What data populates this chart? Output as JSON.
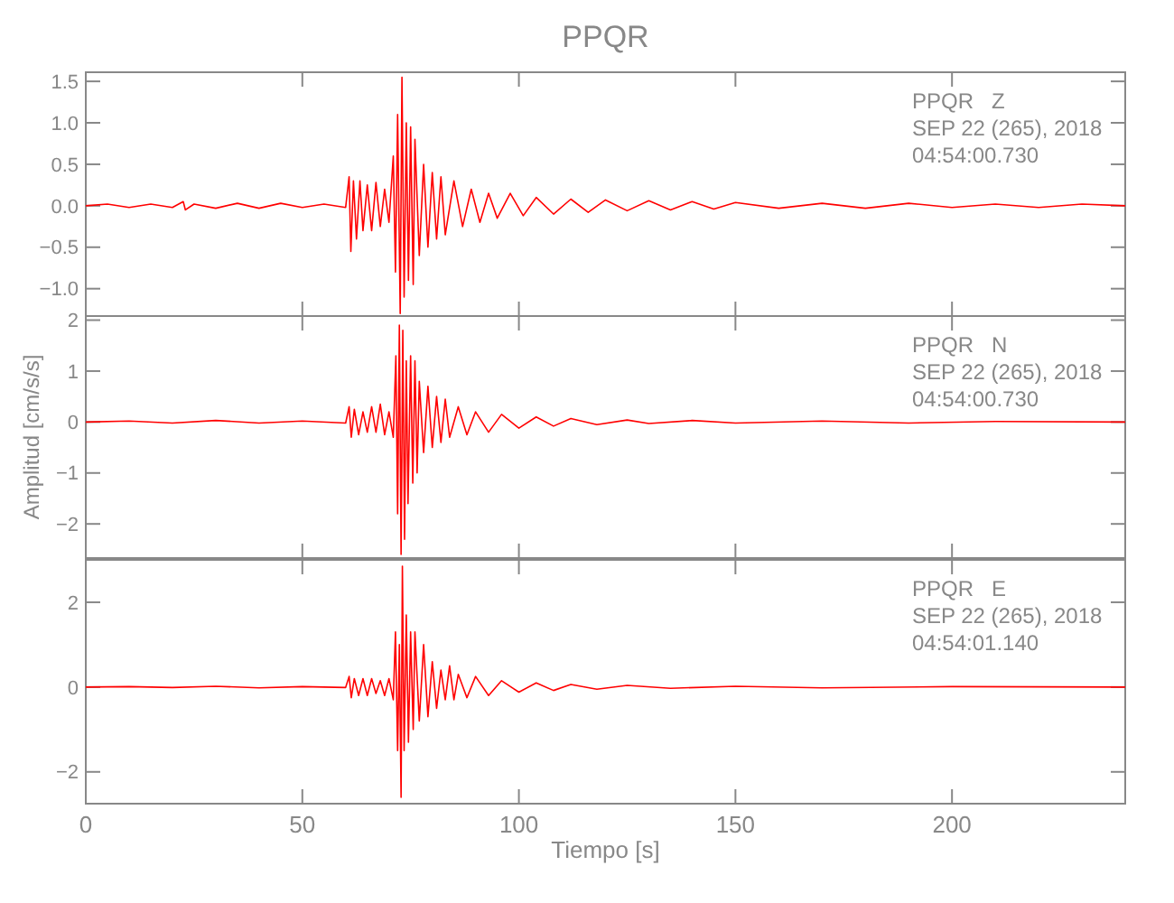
{
  "chart_data": [
    {
      "type": "line",
      "title": "PPQR",
      "xlim": [
        0,
        240
      ],
      "xticks": [
        0,
        50,
        100,
        150,
        200
      ],
      "ylim": [
        -1.33,
        1.61
      ],
      "yticks": [
        {
          "value": -1,
          "label": "−1.0"
        },
        {
          "value": -0.5,
          "label": "−0.5"
        },
        {
          "value": 0,
          "label": "0.0"
        },
        {
          "value": 0.5,
          "label": "0.5"
        },
        {
          "value": 1,
          "label": "1.0"
        },
        {
          "value": 1.5,
          "label": "1.5"
        }
      ],
      "tick_labels": "y",
      "grid": false,
      "annotations": [
        "PPQR   Z",
        "SEP 22 (265), 2018",
        "04:54:00.730"
      ],
      "series": [
        {
          "color": "#ff0000",
          "x": [
            0,
            5,
            10,
            15,
            20,
            22.5,
            23,
            25,
            30,
            35,
            40,
            45,
            50,
            55,
            60,
            60.8,
            61.2,
            61.8,
            62.5,
            63.3,
            64,
            65,
            66,
            67,
            68,
            69,
            70,
            71,
            71.5,
            72,
            72.6,
            73,
            73.5,
            74,
            74.5,
            75,
            75.6,
            76,
            77,
            78,
            79,
            80,
            81,
            82,
            83,
            85,
            87,
            89,
            91,
            93,
            95,
            98,
            101,
            104,
            108,
            112,
            116,
            120,
            125,
            130,
            135,
            140,
            145,
            150,
            160,
            170,
            180,
            190,
            200,
            210,
            220,
            230,
            240
          ],
          "values": [
            0,
            0.02,
            -0.02,
            0.02,
            -0.02,
            0.05,
            -0.05,
            0.02,
            -0.03,
            0.03,
            -0.03,
            0.03,
            -0.02,
            0.02,
            -0.02,
            0.35,
            -0.55,
            0.3,
            -0.4,
            0.3,
            -0.3,
            0.25,
            -0.3,
            0.28,
            -0.25,
            0.2,
            -0.2,
            0.6,
            -0.8,
            1.1,
            -1.3,
            1.55,
            -1.1,
            1.0,
            -0.9,
            0.95,
            -0.95,
            0.8,
            -0.6,
            0.5,
            -0.5,
            0.4,
            -0.4,
            0.35,
            -0.35,
            0.3,
            -0.25,
            0.2,
            -0.2,
            0.15,
            -0.15,
            0.15,
            -0.12,
            0.1,
            -0.1,
            0.08,
            -0.08,
            0.07,
            -0.06,
            0.06,
            -0.05,
            0.05,
            -0.04,
            0.04,
            -0.03,
            0.03,
            -0.03,
            0.03,
            -0.02,
            0.02,
            -0.02,
            0.02,
            0
          ]
        }
      ]
    },
    {
      "type": "line",
      "ylabel": "Amplitud [cm/s/s]",
      "xlim": [
        0,
        240
      ],
      "xticks": [
        0,
        50,
        100,
        150,
        200
      ],
      "ylim": [
        -2.67,
        2.08
      ],
      "yticks": [
        {
          "value": -2,
          "label": "−2"
        },
        {
          "value": -1,
          "label": "−1"
        },
        0,
        1,
        2
      ],
      "tick_labels": "y",
      "grid": false,
      "annotations": [
        "PPQR   N",
        "SEP 22 (265), 2018",
        "04:54:00.730"
      ],
      "series": [
        {
          "color": "#ff0000",
          "x": [
            0,
            10,
            20,
            30,
            40,
            50,
            60,
            60.8,
            61.3,
            62,
            63,
            64,
            65,
            66,
            67,
            68,
            69,
            70,
            71,
            71.6,
            72,
            72.4,
            72.8,
            73.2,
            73.6,
            74,
            74.4,
            75,
            75.5,
            76,
            76.5,
            77,
            78,
            79,
            80,
            81,
            82,
            83,
            84,
            86,
            88,
            90,
            93,
            96,
            100,
            104,
            108,
            112,
            118,
            125,
            130,
            140,
            150,
            170,
            190,
            210,
            240
          ],
          "values": [
            0,
            0.02,
            -0.02,
            0.03,
            -0.02,
            0.02,
            -0.02,
            0.3,
            -0.3,
            0.25,
            -0.25,
            0.2,
            -0.2,
            0.3,
            -0.2,
            0.35,
            -0.25,
            0.2,
            -0.3,
            1.3,
            -1.8,
            1.9,
            -2.6,
            1.8,
            -2.3,
            1.2,
            -1.6,
            1.3,
            -1.2,
            1.2,
            -1.0,
            0.8,
            -0.6,
            0.7,
            -0.5,
            0.5,
            -0.4,
            0.45,
            -0.3,
            0.3,
            -0.25,
            0.2,
            -0.2,
            0.15,
            -0.12,
            0.1,
            -0.08,
            0.07,
            -0.05,
            0.04,
            -0.03,
            0.03,
            -0.02,
            0.02,
            -0.02,
            0.01,
            0
          ]
        }
      ]
    },
    {
      "type": "line",
      "xlabel": "Tiempo [s]",
      "xlim": [
        0,
        240
      ],
      "xticks": [
        0,
        50,
        100,
        150,
        200
      ],
      "ylim": [
        -2.75,
        3.0
      ],
      "yticks": [
        {
          "value": -2,
          "label": "−2"
        },
        0,
        2
      ],
      "grid": false,
      "annotations": [
        "PPQR   E",
        "SEP 22 (265), 2018",
        "04:54:01.140"
      ],
      "series": [
        {
          "color": "#ff0000",
          "x": [
            0,
            10,
            20,
            30,
            40,
            50,
            60,
            60.8,
            61.3,
            62,
            63,
            64,
            65,
            66,
            67,
            68,
            69,
            70,
            71,
            71.5,
            72,
            72.4,
            72.8,
            73.1,
            73.5,
            74,
            74.5,
            75,
            75.6,
            76,
            77,
            78,
            79,
            80,
            81,
            82,
            83,
            84,
            85,
            86,
            88,
            90,
            93,
            96,
            100,
            104,
            108,
            112,
            118,
            125,
            135,
            150,
            170,
            200,
            240
          ],
          "values": [
            0,
            0.01,
            -0.01,
            0.02,
            -0.02,
            0.01,
            -0.01,
            0.25,
            -0.25,
            0.2,
            -0.2,
            0.2,
            -0.2,
            0.2,
            -0.15,
            0.15,
            -0.2,
            0.2,
            -0.3,
            1.3,
            -1.5,
            1.0,
            -2.6,
            2.85,
            -1.5,
            1.7,
            -1.3,
            1.3,
            -1.0,
            1.3,
            -0.8,
            1.0,
            -0.7,
            0.6,
            -0.5,
            0.4,
            -0.3,
            0.5,
            -0.3,
            0.3,
            -0.25,
            0.25,
            -0.2,
            0.15,
            -0.12,
            0.1,
            -0.08,
            0.06,
            -0.05,
            0.04,
            -0.03,
            0.02,
            -0.02,
            0.01,
            0
          ]
        }
      ]
    }
  ]
}
